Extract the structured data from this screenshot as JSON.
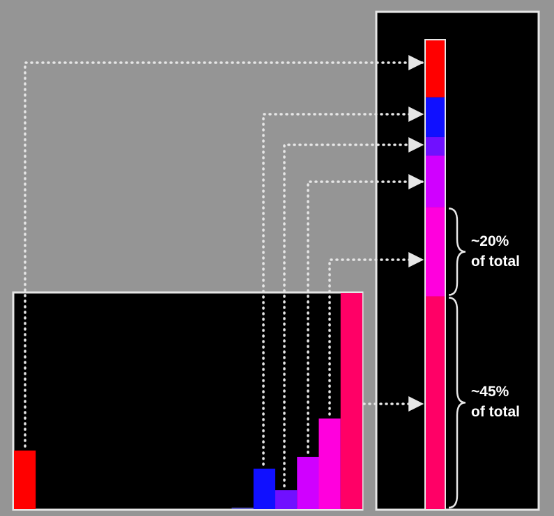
{
  "colors": {
    "background": "#959595",
    "panel_fill": "#000000",
    "panel_border": "#e6e6e6",
    "connector": "#e6e6e6",
    "label": "#ffffff"
  },
  "histogram": {
    "bins": [
      {
        "name": "red",
        "color": "#ff0000",
        "value": 84
      },
      {
        "name": "empty-1",
        "color": "#000000",
        "value": 0
      },
      {
        "name": "empty-2",
        "color": "#000000",
        "value": 0
      },
      {
        "name": "empty-3",
        "color": "#000000",
        "value": 0
      },
      {
        "name": "empty-4",
        "color": "#000000",
        "value": 0
      },
      {
        "name": "empty-5",
        "color": "#000000",
        "value": 0
      },
      {
        "name": "empty-6",
        "color": "#000000",
        "value": 0
      },
      {
        "name": "empty-7",
        "color": "#000000",
        "value": 0
      },
      {
        "name": "empty-8",
        "color": "#000000",
        "value": 0
      },
      {
        "name": "empty-9",
        "color": "#000000",
        "value": 0
      },
      {
        "name": "faint-blue",
        "color": "#6464c8",
        "value": 1
      },
      {
        "name": "blue",
        "color": "#1010ff",
        "value": 58
      },
      {
        "name": "violet",
        "color": "#7010ff",
        "value": 27
      },
      {
        "name": "purple",
        "color": "#d000ff",
        "value": 75
      },
      {
        "name": "magenta",
        "color": "#ff00dd",
        "value": 130
      },
      {
        "name": "pink",
        "color": "#ff0066",
        "value": 310
      }
    ],
    "max_value": 310
  },
  "stack": {
    "segments": [
      {
        "name": "red",
        "color": "#ff0000",
        "value": 84
      },
      {
        "name": "blue",
        "color": "#1010ff",
        "value": 58
      },
      {
        "name": "violet",
        "color": "#7010ff",
        "value": 27
      },
      {
        "name": "purple",
        "color": "#d000ff",
        "value": 75
      },
      {
        "name": "magenta",
        "color": "#ff00dd",
        "value": 130
      },
      {
        "name": "pink",
        "color": "#ff0066",
        "value": 310
      }
    ]
  },
  "annotations": [
    {
      "name": "magenta-share",
      "segment": "magenta",
      "line1": "~20%",
      "line2": "of total"
    },
    {
      "name": "pink-share",
      "segment": "pink",
      "line1": "~45%",
      "line2": "of total"
    }
  ]
}
